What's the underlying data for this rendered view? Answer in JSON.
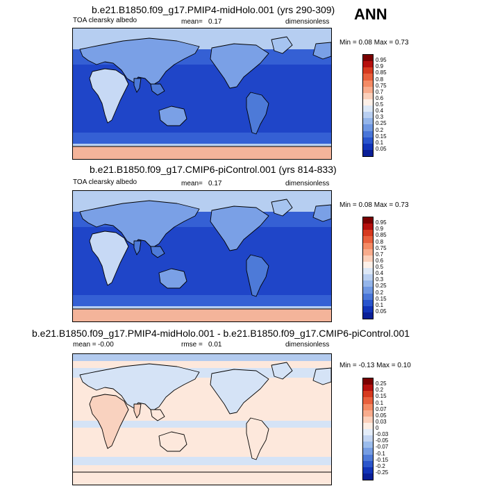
{
  "season": "ANN",
  "panels": [
    {
      "title": "b.e21.B1850.f09_g17.PMIP4-midHolo.001 (yrs 290-309)",
      "variable": "TOA clearsky albedo",
      "mean_label": "mean=",
      "mean_value": "0.17",
      "units": "dimensionless",
      "minmax": "Min =  0.08 Max =  0.73",
      "colorbar_labels": [
        "0.95",
        "0.9",
        "0.85",
        "0.8",
        "0.75",
        "0.7",
        "0.6",
        "0.5",
        "0.4",
        "0.3",
        "0.25",
        "0.2",
        "0.15",
        "0.1",
        "0.05"
      ],
      "colorbar_colors": [
        "#7a0000",
        "#b5100d",
        "#d63a1f",
        "#e8603d",
        "#f48b65",
        "#f8ac8d",
        "#fbd0bb",
        "#fdf0e8",
        "#dde8f7",
        "#b9cff1",
        "#94b5ea",
        "#6f97e2",
        "#4a76d8",
        "#2a55cd",
        "#1234b8",
        "#0a1f97"
      ]
    },
    {
      "title": "b.e21.B1850.f09_g17.CMIP6-piControl.001 (yrs 814-833)",
      "variable": "TOA clearsky albedo",
      "mean_label": "mean=",
      "mean_value": "0.17",
      "units": "dimensionless",
      "minmax": "Min =  0.08 Max =  0.73",
      "colorbar_labels": [
        "0.95",
        "0.9",
        "0.85",
        "0.8",
        "0.75",
        "0.7",
        "0.6",
        "0.5",
        "0.4",
        "0.3",
        "0.25",
        "0.2",
        "0.15",
        "0.1",
        "0.05"
      ],
      "colorbar_colors": [
        "#7a0000",
        "#b5100d",
        "#d63a1f",
        "#e8603d",
        "#f48b65",
        "#f8ac8d",
        "#fbd0bb",
        "#fdf0e8",
        "#dde8f7",
        "#b9cff1",
        "#94b5ea",
        "#6f97e2",
        "#4a76d8",
        "#2a55cd",
        "#1234b8",
        "#0a1f97"
      ]
    },
    {
      "title": "b.e21.B1850.f09_g17.PMIP4-midHolo.001 - b.e21.B1850.f09_g17.CMIP6-piControl.001",
      "mean_label": "mean =",
      "mean_value": "-0.00",
      "rmse_label": "rmse =",
      "rmse_value": "0.01",
      "units": "dimensionless",
      "minmax": "Min =  -0.13 Max =  0.10",
      "colorbar_labels": [
        "0.25",
        "0.2",
        "0.15",
        "0.1",
        "0.07",
        "0.05",
        "0.03",
        "0",
        "-0.03",
        "-0.05",
        "-0.07",
        "-0.1",
        "-0.15",
        "-0.2",
        "-0.25"
      ],
      "colorbar_colors": [
        "#7a0000",
        "#b5100d",
        "#d63a1f",
        "#e8603d",
        "#f48b65",
        "#f8ac8d",
        "#fbd0bb",
        "#fdeee4",
        "#e4edf9",
        "#c3d5f2",
        "#9bbcec",
        "#769de3",
        "#4f7ad8",
        "#2c56cb",
        "#1234b8",
        "#0a1f97"
      ]
    }
  ],
  "map_colors": {
    "ocean_deep": "#1f45c8",
    "ocean_mid": "#3560d4",
    "land_low": "#4d7ad8",
    "land_mid": "#7aa0e6",
    "land_bright": "#a6c4f0",
    "desert": "#c7d9f5",
    "high_lat": "#b6cef1",
    "polar": "#f4b49a",
    "diff_bg": "#fde8dc",
    "diff_pos": "#f9d2bf",
    "diff_neg": "#d5e3f6",
    "diff_neg2": "#b3cbef",
    "coast": "#000000"
  }
}
